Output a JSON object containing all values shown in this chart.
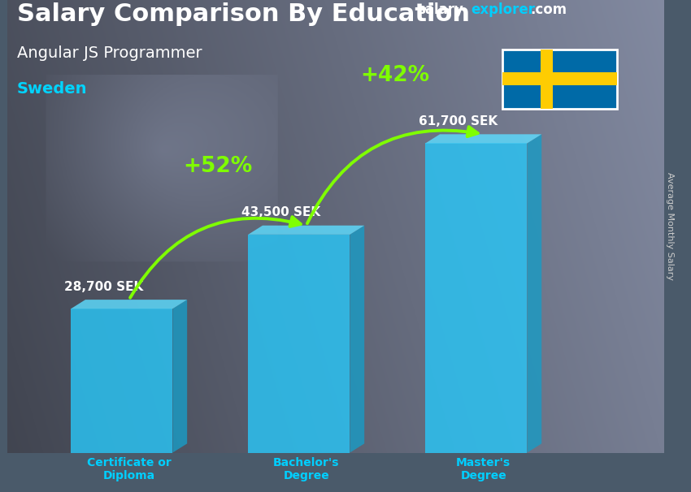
{
  "title": "Salary Comparison By Education",
  "subtitle": "Angular JS Programmer",
  "country": "Sweden",
  "ylabel": "Average Monthly Salary",
  "categories": [
    "Certificate or\nDiploma",
    "Bachelor's\nDegree",
    "Master's\nDegree"
  ],
  "values": [
    28700,
    43500,
    61700
  ],
  "labels": [
    "28,700 SEK",
    "43,500 SEK",
    "61,700 SEK"
  ],
  "pct_labels": [
    "+52%",
    "+42%"
  ],
  "bar_face_color": "#29c5f6",
  "bar_top_color": "#5ddcff",
  "bar_side_color": "#1a9bc4",
  "bar_alpha": 0.82,
  "title_color": "#ffffff",
  "subtitle_color": "#ffffff",
  "country_color": "#00d4ff",
  "label_color": "#ffffff",
  "pct_color": "#7fff00",
  "category_color": "#00cfff",
  "arrow_color": "#7fff00",
  "website_salary_color": "#ffffff",
  "website_explorer_color": "#00cfff",
  "website_com_color": "#ffffff",
  "flag_blue": "#006AA7",
  "flag_yellow": "#FECC02",
  "bg_left": "#3a4a5a",
  "bg_right": "#6a7a8a",
  "bg_mid": "#8a9aaa"
}
